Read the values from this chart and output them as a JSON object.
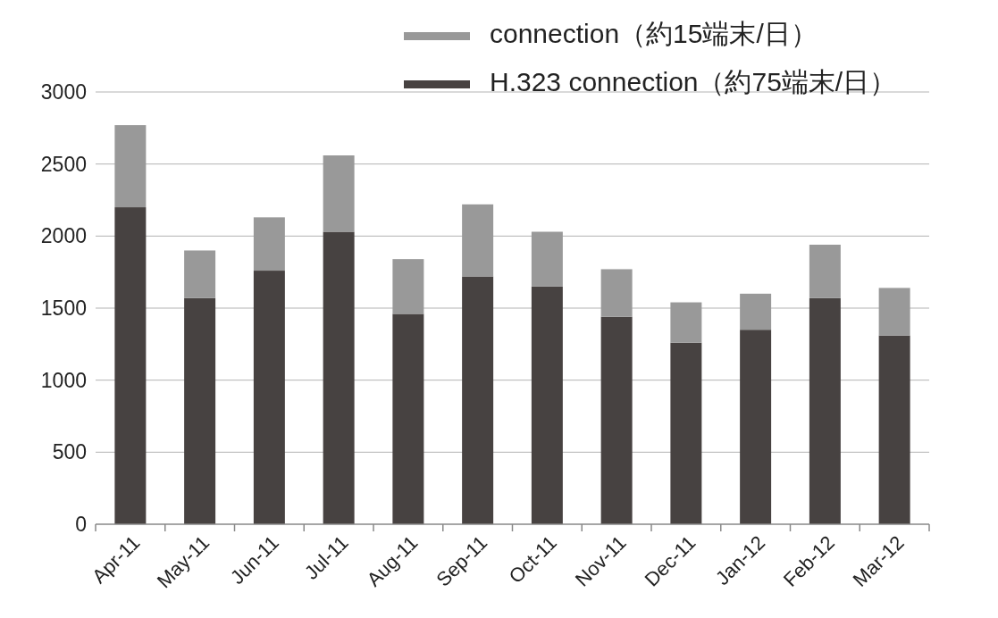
{
  "chart_data": {
    "type": "bar",
    "stacked": true,
    "categories": [
      "Apr-11",
      "May-11",
      "Jun-11",
      "Jul-11",
      "Aug-11",
      "Sep-11",
      "Oct-11",
      "Nov-11",
      "Dec-11",
      "Jan-12",
      "Feb-12",
      "Mar-12"
    ],
    "series": [
      {
        "name": "H.323 connection（約75端末/日）",
        "color": "#474241",
        "values": [
          2200,
          1570,
          1760,
          2030,
          1460,
          1720,
          1650,
          1440,
          1260,
          1350,
          1570,
          1310
        ]
      },
      {
        "name": "connection（約15端末/日）",
        "color": "#999999",
        "values": [
          570,
          330,
          370,
          530,
          380,
          500,
          380,
          330,
          280,
          250,
          370,
          330
        ]
      }
    ],
    "ylim": [
      0,
      3000
    ],
    "yticks": [
      0,
      500,
      1000,
      1500,
      2000,
      2500,
      3000
    ],
    "grid": "y",
    "legend": "top right"
  }
}
